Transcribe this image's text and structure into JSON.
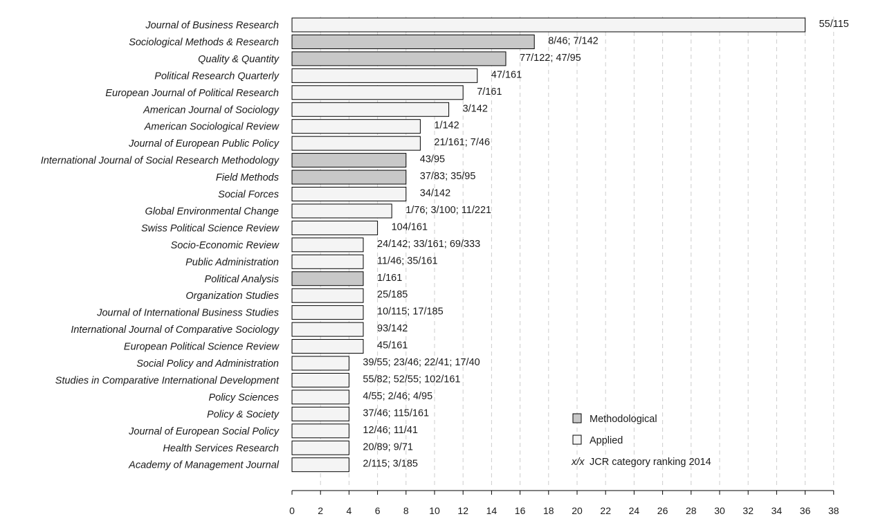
{
  "chart_data": {
    "type": "bar",
    "orientation": "horizontal",
    "categories": [
      "Journal of Business Research",
      "Sociological Methods & Research",
      "Quality & Quantity",
      "Political Research Quarterly",
      "European Journal of Political Research",
      "American Journal of Sociology",
      "American Sociological Review",
      "Journal of European Public Policy",
      "International Journal of Social Research Methodology",
      "Field Methods",
      "Social Forces",
      "Global Environmental Change",
      "Swiss Political Science Review",
      "Socio-Economic Review",
      "Public Administration",
      "Political Analysis",
      "Organization Studies",
      "Journal of International Business Studies",
      "International Journal of Comparative Sociology",
      "European Political Science Review",
      "Social Policy and Administration",
      "Studies in Comparative International Development",
      "Policy Sciences",
      "Policy & Society",
      "Journal of European Social Policy",
      "Health Services Research",
      "Academy of Management Journal"
    ],
    "values": [
      36,
      17,
      15,
      13,
      12,
      11,
      9,
      9,
      8,
      8,
      8,
      7,
      6,
      5,
      5,
      5,
      5,
      5,
      5,
      5,
      4,
      4,
      4,
      4,
      4,
      4,
      4
    ],
    "kinds": [
      "Applied",
      "Methodological",
      "Methodological",
      "Applied",
      "Applied",
      "Applied",
      "Applied",
      "Applied",
      "Methodological",
      "Methodological",
      "Applied",
      "Applied",
      "Applied",
      "Applied",
      "Applied",
      "Methodological",
      "Applied",
      "Applied",
      "Applied",
      "Applied",
      "Applied",
      "Applied",
      "Applied",
      "Applied",
      "Applied",
      "Applied",
      "Applied"
    ],
    "bar_labels": [
      "55/115",
      "8/46; 7/142",
      "77/122; 47/95",
      "47/161",
      "7/161",
      "3/142",
      "1/142",
      "21/161; 7/46",
      "43/95",
      "37/83; 35/95",
      "34/142",
      "1/76; 3/100; 11/221",
      "104/161",
      "24/142; 33/161; 69/333",
      "11/46; 35/161",
      "1/161",
      "25/185",
      "10/115; 17/185",
      "93/142",
      "45/161",
      "39/55; 23/46; 22/41; 17/40",
      "55/82; 52/55; 102/161",
      "4/55; 2/46; 4/95",
      "37/46; 115/161",
      "12/46; 11/41",
      "20/89; 9/71",
      "2/115; 3/185"
    ],
    "xlim": [
      0,
      38
    ],
    "xticks": [
      0,
      2,
      4,
      6,
      8,
      10,
      12,
      14,
      16,
      18,
      20,
      22,
      24,
      26,
      28,
      30,
      32,
      34,
      36,
      38
    ],
    "grid": "vertical dashed",
    "title": "",
    "xlabel": "",
    "ylabel": "",
    "colors": {
      "Methodological": "#c8c8c8",
      "Applied": "#f4f4f4",
      "bar_stroke": "#000000",
      "grid": "#cccccc"
    },
    "legend": {
      "position": "bottom-right",
      "items": [
        {
          "label": "Methodological",
          "kind": "Methodological"
        },
        {
          "label": "Applied",
          "kind": "Applied"
        }
      ],
      "note_symbol": "x/x",
      "note_text": "JCR category ranking 2014"
    }
  }
}
